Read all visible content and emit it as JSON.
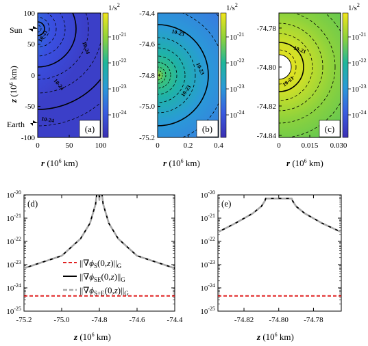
{
  "colorbar": {
    "unit_label": "1/s",
    "unit_exp": "2",
    "ticks": [
      "-21",
      "-22",
      "-23",
      "-24"
    ],
    "tick_base": "10",
    "colors": [
      "#e8e21c",
      "#7fd34e",
      "#24ad80",
      "#1f8fa3",
      "#2d77d8",
      "#3a4fe0",
      "#3b2fb3"
    ]
  },
  "chart_data": [
    {
      "type": "heatmap",
      "panel_label": "(a)",
      "xlabel_var": "r",
      "xlabel_unit": " (10",
      "xlabel_exp": "6",
      "xlabel_tail": " km)",
      "ylabel_var": "z",
      "ylabel_unit": " (10",
      "ylabel_exp": "6",
      "ylabel_tail": " km)",
      "xlim": [
        0,
        100
      ],
      "ylim": [
        -100,
        100
      ],
      "xticks": [
        "0",
        "50",
        "100"
      ],
      "yticks": [
        "100",
        "50",
        "0",
        "-50",
        "-100"
      ],
      "contour_labels": [
        "10-24",
        "10-21",
        "10-24",
        "10-24"
      ],
      "annotations": [
        "Sun",
        "Earth"
      ],
      "source_z": -74.8
    },
    {
      "type": "heatmap",
      "panel_label": "(b)",
      "xlabel_var": "r",
      "xlabel_unit": " (10",
      "xlabel_exp": "6",
      "xlabel_tail": " km)",
      "xlim": [
        0,
        0.4
      ],
      "ylim": [
        -75.2,
        -74.4
      ],
      "xticks": [
        "0",
        "0.2",
        "0.4"
      ],
      "yticks": [
        "-74.4",
        "-74.6",
        "-74.8",
        "-75.0",
        "-75.2"
      ],
      "contour_labels": [
        "10-23",
        "10-23",
        "10-23"
      ]
    },
    {
      "type": "heatmap",
      "panel_label": "(c)",
      "xlabel_var": "r",
      "xlabel_unit": " (10",
      "xlabel_exp": "6",
      "xlabel_tail": " km)",
      "xlim": [
        0,
        0.03
      ],
      "ylim": [
        -74.84,
        -74.78
      ],
      "xticks": [
        "0",
        "0.015",
        "0.030"
      ],
      "yticks": [
        "-74.78",
        "-74.80",
        "-74.82",
        "-74.84"
      ],
      "contour_labels": [
        "10-21",
        "10-21"
      ]
    },
    {
      "type": "line",
      "panel_label": "(d)",
      "xlabel_var": "z",
      "xlabel_unit": " (10",
      "xlabel_exp": "6",
      "xlabel_tail": " km)",
      "xlim": [
        -75.2,
        -74.4
      ],
      "ylim_exp": [
        -25,
        -20
      ],
      "xticks": [
        "-75.2",
        "-75.0",
        "-74.8",
        "-74.6",
        "-74.4"
      ],
      "yticks_exp": [
        "-20",
        "-21",
        "-22",
        "-23",
        "-24",
        "-25"
      ],
      "series": [
        {
          "name": "S",
          "color": "#e02020",
          "style": "dashed",
          "points": [
            [
              -75.2,
              4.5e-25
            ],
            [
              -74.4,
              4.5e-25
            ]
          ]
        },
        {
          "name": "SE",
          "color": "#000000",
          "style": "solid",
          "points": [
            [
              -75.2,
              7e-24
            ],
            [
              -75.0,
              2.4e-23
            ],
            [
              -74.9,
              1.3e-22
            ],
            [
              -74.85,
              6e-22
            ],
            [
              -74.82,
              4e-21
            ],
            [
              -74.805,
              4e-20
            ],
            [
              -74.8,
              6e-21
            ],
            [
              -74.795,
              4e-20
            ],
            [
              -74.78,
              4e-21
            ],
            [
              -74.75,
              6e-22
            ],
            [
              -74.7,
              1.3e-22
            ],
            [
              -74.6,
              2.4e-23
            ],
            [
              -74.4,
              7e-24
            ]
          ]
        },
        {
          "name": "S+E",
          "color": "#a8a8a8",
          "style": "dashed",
          "points": [
            [
              -75.2,
              7e-24
            ],
            [
              -75.0,
              2.4e-23
            ],
            [
              -74.9,
              1.3e-22
            ],
            [
              -74.85,
              6e-22
            ],
            [
              -74.82,
              4e-21
            ],
            [
              -74.805,
              4e-20
            ],
            [
              -74.8,
              6e-21
            ],
            [
              -74.795,
              4e-20
            ],
            [
              -74.78,
              4e-21
            ],
            [
              -74.75,
              6e-22
            ],
            [
              -74.7,
              1.3e-22
            ],
            [
              -74.6,
              2.4e-23
            ],
            [
              -74.4,
              7e-24
            ]
          ]
        }
      ],
      "legend": [
        {
          "pre": "||∇",
          "phi": "ϕ",
          "sub": "S",
          "args": "(0,",
          "zvar": "z",
          "close": ")||",
          "G": "G"
        },
        {
          "pre": "||∇",
          "phi": "ϕ",
          "sub": "SE",
          "args": "(0,",
          "zvar": "z",
          "close": ")||",
          "G": "G"
        },
        {
          "pre": "||∇",
          "phi": "ϕ",
          "sub": "S+E",
          "args": "(0,",
          "zvar": "z",
          "close": ")||",
          "G": "G"
        }
      ]
    },
    {
      "type": "line",
      "panel_label": "(e)",
      "xlabel_var": "z",
      "xlabel_unit": " (10",
      "xlabel_exp": "6",
      "xlabel_tail": " km)",
      "xlim": [
        -74.835,
        -74.764
      ],
      "ylim_exp": [
        -25,
        -20
      ],
      "xticks": [
        "-74.82",
        "-74.80",
        "-74.78"
      ],
      "xtick_values": [
        -74.82,
        -74.8,
        -74.78
      ],
      "yticks_exp": [
        "-20",
        "-21",
        "-22",
        "-23",
        "-24",
        "-25"
      ],
      "series": [
        {
          "name": "S",
          "color": "#e02020",
          "style": "dashed",
          "points": [
            [
              -74.835,
              4.5e-25
            ],
            [
              -74.764,
              4.5e-25
            ]
          ]
        },
        {
          "name": "SE",
          "color": "#000000",
          "style": "solid",
          "points": [
            [
              -74.835,
              2.5e-22
            ],
            [
              -74.825,
              6e-22
            ],
            [
              -74.815,
              1.6e-21
            ],
            [
              -74.81,
              3.2e-21
            ],
            [
              -74.808,
              5.5e-21
            ],
            [
              -74.8075,
              7e-21
            ],
            [
              -74.7925,
              7e-21
            ],
            [
              -74.792,
              5.5e-21
            ],
            [
              -74.79,
              3.2e-21
            ],
            [
              -74.785,
              1.6e-21
            ],
            [
              -74.775,
              6e-22
            ],
            [
              -74.764,
              2.5e-22
            ]
          ]
        },
        {
          "name": "S+E",
          "color": "#a8a8a8",
          "style": "dashed",
          "points": [
            [
              -74.835,
              2.5e-22
            ],
            [
              -74.825,
              6e-22
            ],
            [
              -74.815,
              1.6e-21
            ],
            [
              -74.81,
              3.2e-21
            ],
            [
              -74.808,
              5.5e-21
            ],
            [
              -74.8075,
              7e-21
            ],
            [
              -74.7925,
              7e-21
            ],
            [
              -74.792,
              5.5e-21
            ],
            [
              -74.79,
              3.2e-21
            ],
            [
              -74.785,
              1.6e-21
            ],
            [
              -74.775,
              6e-22
            ],
            [
              -74.764,
              2.5e-22
            ]
          ]
        }
      ]
    }
  ]
}
